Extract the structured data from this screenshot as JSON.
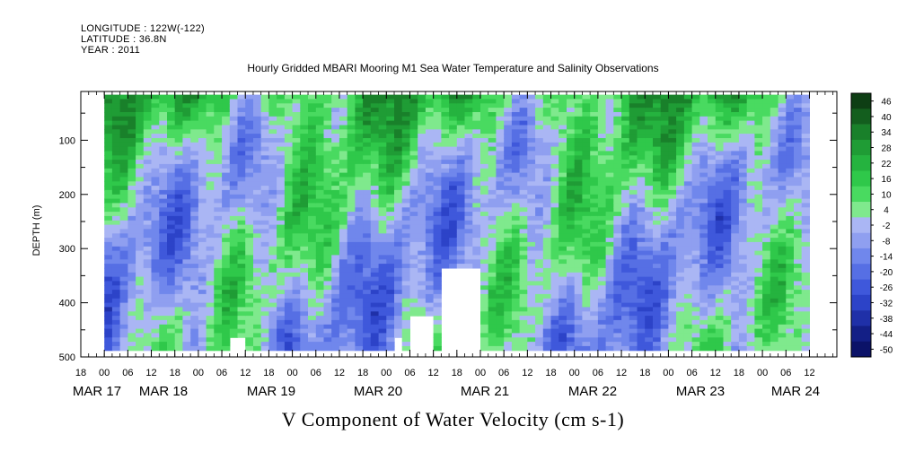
{
  "header": {
    "longitude": "LONGITUDE : 122W(-122)",
    "latitude": "LATITUDE : 36.8N",
    "year": "YEAR : 2011"
  },
  "chart_data": {
    "type": "heatmap",
    "title": "Hourly Gridded MBARI Mooring M1 Sea Water Temperature and Salinity Observations",
    "xlabel": "V Component of Water Velocity (cm s-1)",
    "ylabel": "DEPTH (m)",
    "x_hour_ticks": [
      "18",
      "00",
      "06",
      "12",
      "18",
      "00",
      "06",
      "12",
      "18",
      "00",
      "06",
      "12",
      "18",
      "00",
      "06",
      "12",
      "18",
      "00",
      "06",
      "12",
      "18",
      "00",
      "06",
      "12",
      "18",
      "00",
      "06",
      "12",
      "18",
      "00",
      "06",
      "12"
    ],
    "x_date_ticks": [
      "MAR 17",
      "MAR 18",
      "MAR 19",
      "MAR 20",
      "MAR 21",
      "MAR 22",
      "MAR 23",
      "MAR 24"
    ],
    "x_range": [
      "2011-03-16 18:00",
      "2011-03-24 19:00"
    ],
    "data_x_range": [
      "2011-03-17 00:00",
      "2011-03-24 12:00"
    ],
    "y_ticks": [
      100,
      200,
      300,
      400,
      500
    ],
    "ylim": [
      500,
      10
    ],
    "data_depth_range": [
      16,
      484
    ],
    "y_inverted": true,
    "colorbar": {
      "labels": [
        "46",
        "40",
        "34",
        "28",
        "22",
        "16",
        "10",
        "4",
        "-2",
        "-8",
        "-14",
        "-20",
        "-26",
        "-32",
        "-38",
        "-44",
        "-50"
      ],
      "colors": [
        "#0e3e14",
        "#135e1e",
        "#19802a",
        "#1f9c35",
        "#25b33f",
        "#2fc84a",
        "#49da60",
        "#7fe98d",
        "#aab6f4",
        "#8f9ff0",
        "#7087ec",
        "#566fe4",
        "#3f58db",
        "#2c43c8",
        "#1f30a8",
        "#131f86",
        "#0b1268"
      ]
    },
    "fields": {
      "description_depth_bands_m": [
        16,
        484
      ],
      "mean_structure": "green (northward, 10 to 46 cm/s) dominant near surface, alternating blue/green columns at depth",
      "missing_data_white": true
    }
  }
}
